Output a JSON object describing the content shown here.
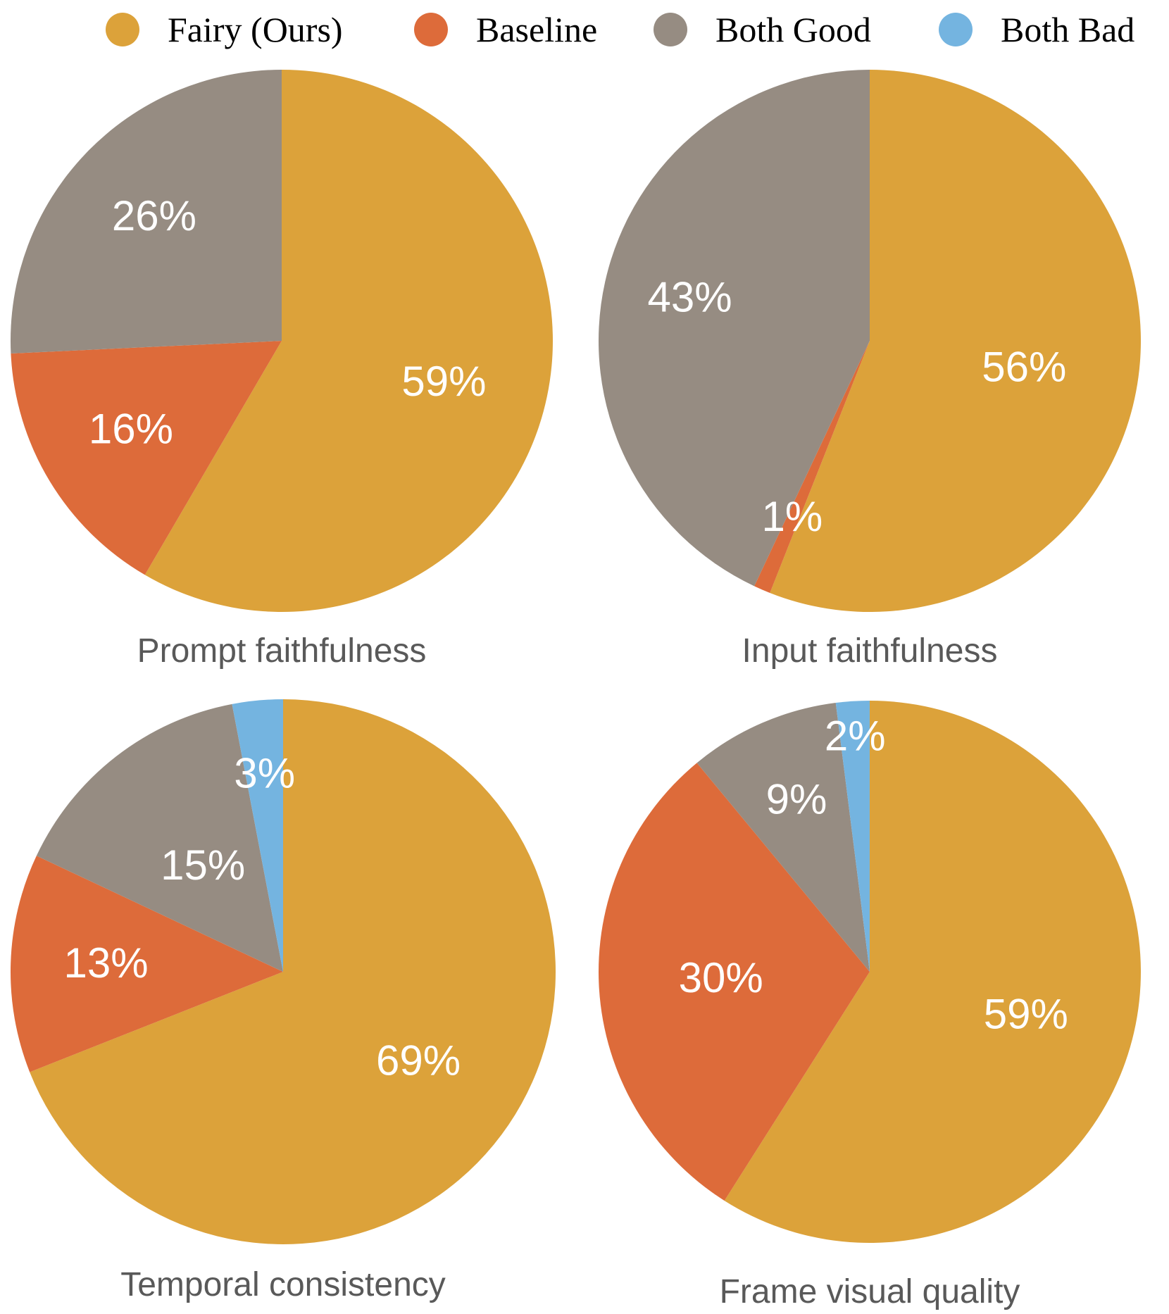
{
  "legend": [
    {
      "label": "Fairy (Ours)",
      "color": "#DCA23A"
    },
    {
      "label": "Baseline",
      "color": "#DD6B3A"
    },
    {
      "label": "Both Good",
      "color": "#968C82"
    },
    {
      "label": "Both Bad",
      "color": "#74B4E0"
    }
  ],
  "chart_data": [
    {
      "type": "pie",
      "title": "Prompt faithfulness",
      "slices": [
        {
          "name": "Fairy (Ours)",
          "value": 59,
          "label": "59%"
        },
        {
          "name": "Baseline",
          "value": 16,
          "label": "16%"
        },
        {
          "name": "Both Good",
          "value": 26,
          "label": "26%"
        }
      ]
    },
    {
      "type": "pie",
      "title": "Input faithfulness",
      "slices": [
        {
          "name": "Fairy (Ours)",
          "value": 56,
          "label": "56%"
        },
        {
          "name": "Baseline",
          "value": 1,
          "label": "1%"
        },
        {
          "name": "Both Good",
          "value": 43,
          "label": "43%"
        }
      ]
    },
    {
      "type": "pie",
      "title": "Temporal consistency",
      "slices": [
        {
          "name": "Fairy (Ours)",
          "value": 69,
          "label": "69%"
        },
        {
          "name": "Baseline",
          "value": 13,
          "label": "13%"
        },
        {
          "name": "Both Good",
          "value": 15,
          "label": "15%"
        },
        {
          "name": "Both Bad",
          "value": 3,
          "label": "3%"
        }
      ]
    },
    {
      "type": "pie",
      "title": "Frame visual quality",
      "slices": [
        {
          "name": "Fairy (Ours)",
          "value": 59,
          "label": "59%"
        },
        {
          "name": "Baseline",
          "value": 30,
          "label": "30%"
        },
        {
          "name": "Both Good",
          "value": 9,
          "label": "9%"
        },
        {
          "name": "Both Bad",
          "value": 2,
          "label": "2%"
        }
      ]
    }
  ]
}
